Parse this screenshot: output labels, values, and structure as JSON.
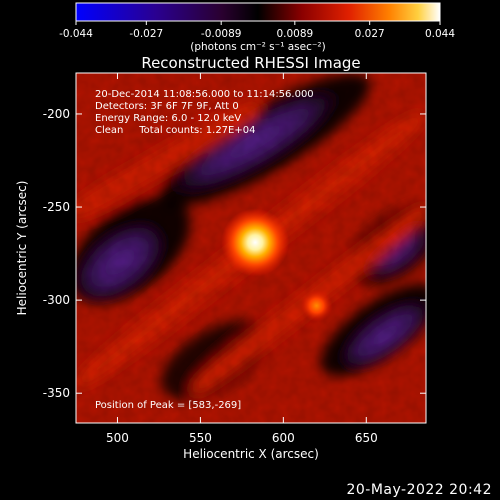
{
  "colorbar": {
    "ticks": [
      "-0.044",
      "-0.027",
      "-0.0089",
      "0.0089",
      "0.027",
      "0.044"
    ],
    "unit_label": "(photons cm⁻² s⁻¹ asec⁻²)",
    "min": -0.044,
    "max": 0.044
  },
  "chart_data": {
    "type": "heatmap",
    "title": "Reconstructed RHESSI Image",
    "xlabel": "Heliocentric X (arcsec)",
    "ylabel": "Heliocentric Y (arcsec)",
    "xlim": [
      475,
      686
    ],
    "ylim": [
      -366,
      -178
    ],
    "xticks": [
      500,
      550,
      600,
      650
    ],
    "yticks": [
      -200,
      -250,
      -300,
      -350
    ],
    "annotation": {
      "line1": "20-Dec-2014 11:08:56.000 to 11:14:56.000",
      "line2": "Detectors: 3F 6F 7F 9F, Att 0",
      "line3": "Energy Range: 6.0 - 12.0 keV",
      "line4": "Clean     Total counts: 1.27E+04"
    },
    "peak_label": "Position of Peak = [583,-269]",
    "peaks": [
      {
        "x": 583,
        "y": -269,
        "value": 0.044
      },
      {
        "x": 620,
        "y": -303,
        "value": 0.03
      }
    ]
  },
  "footer": {
    "timestamp": "20-May-2022 20:42"
  }
}
